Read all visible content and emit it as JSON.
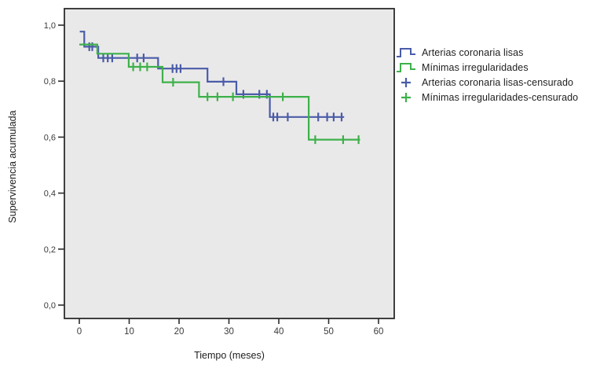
{
  "chart_data": {
    "type": "line",
    "subtype": "kaplan-meier-step",
    "title": "",
    "xlabel": "Tiempo (meses)",
    "ylabel": "Supervivencia acumulada",
    "grid": false,
    "legend_position": "right",
    "xlim": [
      0,
      60
    ],
    "ylim": [
      0.0,
      1.0
    ],
    "x_ticks": {
      "values": [
        0,
        10,
        20,
        30,
        40,
        50,
        60
      ],
      "labels": [
        "0",
        "10",
        "20",
        "30",
        "40",
        "50",
        "60"
      ]
    },
    "y_ticks": {
      "values": [
        0.0,
        0.2,
        0.4,
        0.6,
        0.8,
        1.0
      ],
      "labels": [
        "0,0",
        "0,2",
        "0,4",
        "0,6",
        "0,8",
        "1,0"
      ]
    },
    "plot_bg_color": "#EAE9E9",
    "frame_color": "#2B2B2B",
    "tick_label_color": "#3B3B3B",
    "series": [
      {
        "name": "Arterias coronaria lisas",
        "color": "#4A5CA8",
        "steps": [
          [
            0.1,
            0.977
          ],
          [
            1,
            0.977
          ],
          [
            1,
            0.923
          ],
          [
            3.8,
            0.923
          ],
          [
            3.8,
            0.883
          ],
          [
            15.8,
            0.883
          ],
          [
            15.8,
            0.845
          ],
          [
            25.7,
            0.845
          ],
          [
            25.7,
            0.798
          ],
          [
            31.5,
            0.798
          ],
          [
            31.5,
            0.753
          ],
          [
            38.2,
            0.753
          ],
          [
            38.2,
            0.672
          ],
          [
            53.1,
            0.672
          ]
        ],
        "censored": [
          [
            2,
            0.923
          ],
          [
            2.6,
            0.923
          ],
          [
            4.8,
            0.883
          ],
          [
            5.7,
            0.883
          ],
          [
            6.6,
            0.883
          ],
          [
            11.6,
            0.883
          ],
          [
            12.9,
            0.883
          ],
          [
            18.7,
            0.845
          ],
          [
            19.5,
            0.845
          ],
          [
            20.3,
            0.845
          ],
          [
            28.9,
            0.798
          ],
          [
            32.9,
            0.753
          ],
          [
            36.1,
            0.753
          ],
          [
            37.6,
            0.753
          ],
          [
            38.9,
            0.672
          ],
          [
            39.7,
            0.672
          ],
          [
            41.8,
            0.672
          ],
          [
            47.9,
            0.672
          ],
          [
            49.7,
            0.672
          ],
          [
            51,
            0.672
          ],
          [
            52.6,
            0.672
          ]
        ]
      },
      {
        "name": "Mínimas irregularidades",
        "color": "#3DB14A",
        "steps": [
          [
            0,
            0.931
          ],
          [
            3.6,
            0.931
          ],
          [
            3.6,
            0.898
          ],
          [
            9.9,
            0.898
          ],
          [
            9.9,
            0.851
          ],
          [
            16.7,
            0.851
          ],
          [
            16.7,
            0.796
          ],
          [
            24,
            0.796
          ],
          [
            24,
            0.744
          ],
          [
            46,
            0.744
          ],
          [
            46,
            0.591
          ],
          [
            56.3,
            0.591
          ]
        ],
        "censored": [
          [
            10.8,
            0.851
          ],
          [
            12.2,
            0.851
          ],
          [
            13.6,
            0.851
          ],
          [
            18.8,
            0.796
          ],
          [
            25.7,
            0.744
          ],
          [
            27.7,
            0.744
          ],
          [
            30.8,
            0.744
          ],
          [
            40.8,
            0.744
          ],
          [
            47.3,
            0.591
          ],
          [
            52.9,
            0.591
          ],
          [
            56,
            0.591
          ]
        ]
      }
    ],
    "legend": [
      {
        "label": "Arterias coronaria lisas",
        "type": "step",
        "color": "#4A5CA8"
      },
      {
        "label": "Mínimas irregularidades",
        "type": "step",
        "color": "#3DB14A"
      },
      {
        "label": "Arterias coronaria lisas-censurado",
        "type": "plus",
        "color": "#4A5CA8"
      },
      {
        "label": "Mínimas irregularidades-censurado",
        "type": "plus",
        "color": "#3DB14A"
      }
    ]
  }
}
